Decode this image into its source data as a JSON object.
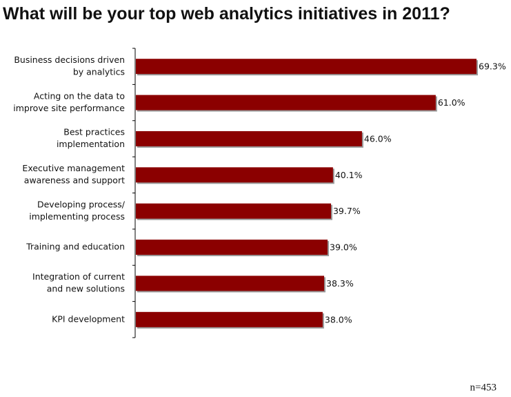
{
  "chart_data": {
    "type": "bar",
    "orientation": "horizontal",
    "title": "What will be your top web analytics initiatives in 2011?",
    "categories": [
      [
        "Business decisions driven",
        "by analytics"
      ],
      [
        "Acting on the data to",
        "improve site performance"
      ],
      [
        "Best practices",
        "implementation"
      ],
      [
        "Executive management",
        "awareness and support"
      ],
      [
        "Developing process/",
        "implementing process"
      ],
      [
        "Training and education"
      ],
      [
        "Integration of current",
        "and new solutions"
      ],
      [
        "KPI development"
      ]
    ],
    "values": [
      69.3,
      61.0,
      46.0,
      40.1,
      39.7,
      39.0,
      38.3,
      38.0
    ],
    "value_labels": [
      "69.3%",
      "61.0%",
      "46.0%",
      "40.1%",
      "39.7%",
      "39.0%",
      "38.3%",
      "38.0%"
    ],
    "color": "#8b0000",
    "note": "n=453"
  }
}
